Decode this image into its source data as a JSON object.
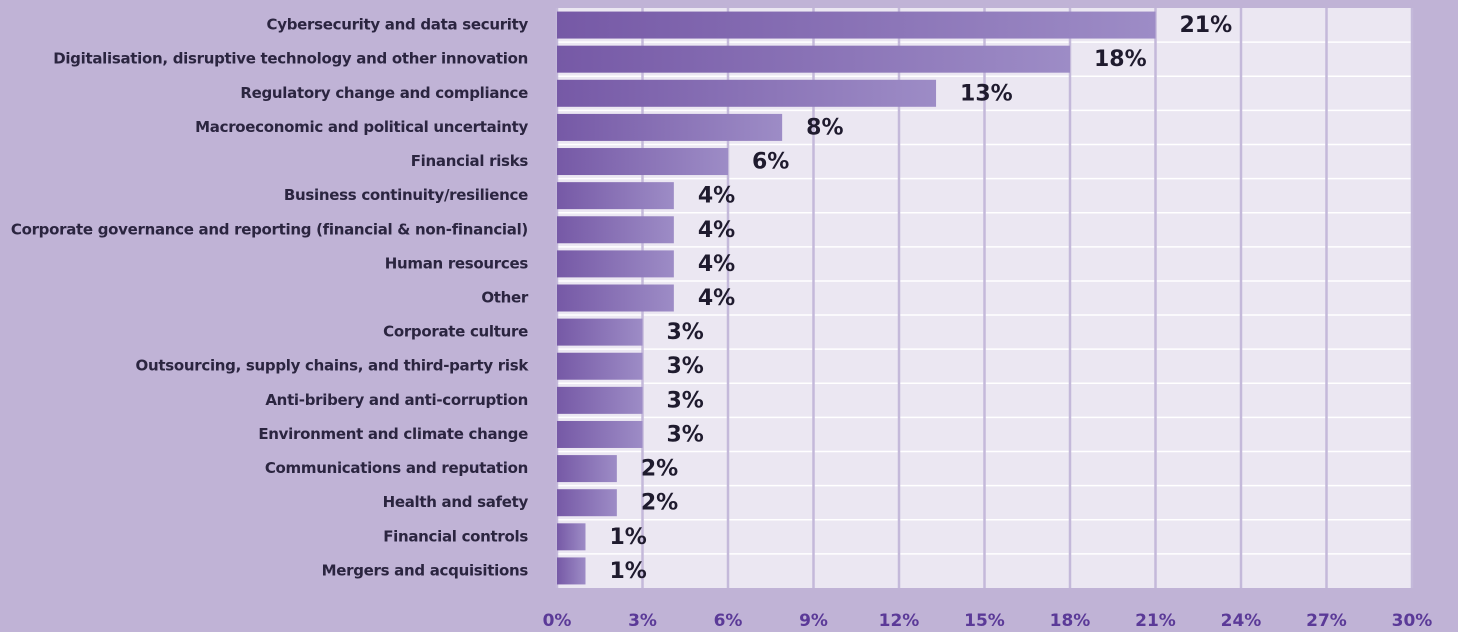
{
  "chart_data": {
    "type": "bar",
    "orientation": "horizontal",
    "categories": [
      "Cybersecurity and data security",
      "Digitalisation, disruptive technology and other innovation",
      "Regulatory change and compliance",
      "Macroeconomic and political uncertainty",
      "Financial risks",
      "Business continuity/resilience",
      "Corporate governance and reporting (financial & non-financial)",
      "Human resources",
      "Other",
      "Corporate culture",
      "Outsourcing, supply chains, and third-party risk",
      "Anti-bribery and anti-corruption",
      "Environment and climate change",
      "Communications and reputation",
      "Health and safety",
      "Financial controls",
      "Mergers and acquisitions"
    ],
    "values": [
      21,
      18,
      13.3,
      7.9,
      6,
      4.1,
      4.1,
      4.1,
      4.1,
      3,
      3,
      3,
      3,
      2.1,
      2.1,
      1,
      1
    ],
    "value_labels": [
      "21%",
      "18%",
      "13%",
      "8%",
      "6%",
      "4%",
      "4%",
      "4%",
      "4%",
      "3%",
      "3%",
      "3%",
      "3%",
      "2%",
      "2%",
      "1%",
      "1%"
    ],
    "color": "#7a5ea8",
    "xlim": [
      0,
      30
    ],
    "xticks": [
      {
        "value": 0,
        "label": "0%"
      },
      {
        "value": 3,
        "label": "3%"
      },
      {
        "value": 6,
        "label": "6%"
      },
      {
        "value": 9,
        "label": "9%"
      },
      {
        "value": 12,
        "label": "12%"
      },
      {
        "value": 15,
        "label": "15%"
      },
      {
        "value": 18,
        "label": "18%"
      },
      {
        "value": 21,
        "label": "21%"
      },
      {
        "value": 24,
        "label": "24%"
      },
      {
        "value": 27,
        "label": "27%"
      },
      {
        "value": 30,
        "label": "30%"
      }
    ],
    "grid": true
  }
}
